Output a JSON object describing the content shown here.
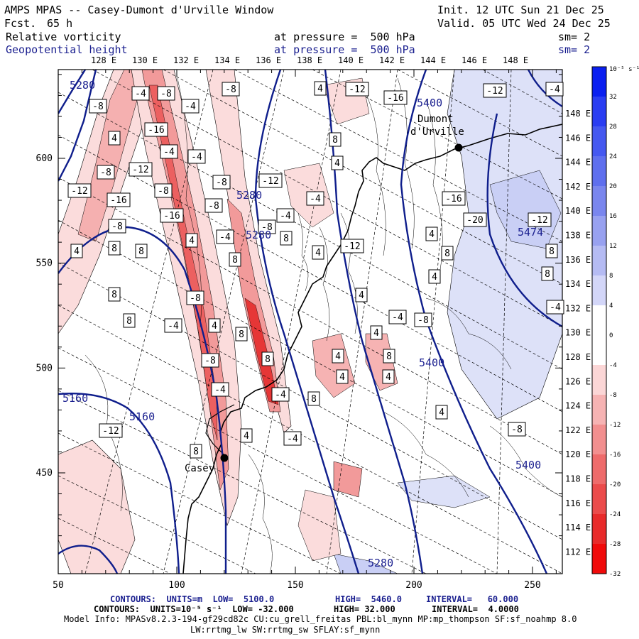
{
  "header": {
    "title": "AMPS MPAS -- Casey-Dumont d'Urville Window",
    "fcst_label": "Fcst.",
    "fcst_value": "65 h",
    "init": "Init. 12 UTC Sun 21 Dec 25",
    "valid": "Valid. 05 UTC Wed 24 Dec 25",
    "field1": "Relative vorticity",
    "field1_pressure": "at pressure =  500 hPa",
    "field1_sm": "sm= 2",
    "field2": "Geopotential height",
    "field2_pressure": "at pressure =  500 hPa",
    "field2_sm": "sm= 2"
  },
  "top_lon_labels": [
    "128 E",
    "130 E",
    "132 E",
    "134 E",
    "136 E",
    "138 E",
    "140 E",
    "142 E",
    "144 E",
    "146 E",
    "148 E"
  ],
  "right_lon_labels": [
    "148 E",
    "146 E",
    "144 E",
    "142 E",
    "140 E",
    "138 E",
    "136 E",
    "134 E",
    "132 E",
    "130 E",
    "128 E",
    "126 E",
    "124 E",
    "122 E",
    "120 E",
    "118 E",
    "116 E",
    "114 E",
    "112 E"
  ],
  "left_axis_labels": [
    "600",
    "550",
    "500",
    "450"
  ],
  "bottom_axis_labels": [
    "50",
    "100",
    "150",
    "200",
    "250"
  ],
  "colorbar": {
    "unit_label": "10⁻⁵ s⁻¹",
    "labels": [
      "32",
      "28",
      "24",
      "20",
      "16",
      "12",
      "8",
      "4",
      "0",
      "-4",
      "-8",
      "-12",
      "-16",
      "-20",
      "-24",
      "-28",
      "-32"
    ],
    "colors": [
      "#0a1ff0",
      "#2a3df2",
      "#4558f0",
      "#5f6fee",
      "#7a86ee",
      "#98a1f0",
      "#b5bbf3",
      "#d3d6f8",
      "#ffffff",
      "#ffffff",
      "#fbd6d6",
      "#f6b3b3",
      "#f28f8f",
      "#ee6b6b",
      "#eb4b4b",
      "#e82a2a",
      "#f00a0a"
    ]
  },
  "stations": [
    {
      "name_line1": "Dumont",
      "name_line2": "d'Urville"
    },
    {
      "name_line1": "Casey",
      "name_line2": ""
    }
  ],
  "height_labels": [
    "5280",
    "5400",
    "5280",
    "5280",
    "5474",
    "5400",
    "5160",
    "5160",
    "5400",
    "5280"
  ],
  "vorticity_labels": [
    "-8",
    "-4",
    "-8",
    "-4",
    "-8",
    "4",
    "-12",
    "-16",
    "-12",
    "-4",
    "4",
    "-16",
    "-4",
    "-4",
    "-12",
    "-8",
    "-8",
    "8",
    "4",
    "-12",
    "-16",
    "-8",
    "-12",
    "-8",
    "-4",
    "-4",
    "-12",
    "-16",
    "-20",
    "-12",
    "-8",
    "-16",
    "-4",
    "8",
    "-8",
    "4",
    "4",
    "8",
    "8",
    "4",
    "8",
    "8",
    "4",
    "8",
    "4",
    "8",
    "8",
    "-4",
    "-8",
    "4",
    "-4",
    "-8",
    "4",
    "8",
    "-4",
    "4",
    "8",
    "4",
    "8",
    "4",
    "4",
    "-8",
    "-4",
    "8",
    "-4",
    "8",
    "4",
    "4",
    "-4",
    "-8",
    "8",
    "-12"
  ],
  "footer": {
    "line1_label": "CONTOURS:  UNITS=m  LOW=  5100.0",
    "line1_high": "HIGH=  5460.0",
    "line1_interval": "INTERVAL=   60.000",
    "line2_label": "CONTOURS:  UNITS=10⁻⁵ s⁻¹  LOW= -32.000",
    "line2_high": "HIGH= 32.000",
    "line2_interval": "INTERVAL=  4.0000",
    "line3": "Model Info: MPASv8.2.3-194-gf29cd82c CU:cu_grell_freitas PBL:bl_mynn MP:mp_thompson SF:sf_noahmp 8.0",
    "line4": "LW:rrtmg_lw SW:rrtmg_sw SFLAY:sf_mynn"
  }
}
